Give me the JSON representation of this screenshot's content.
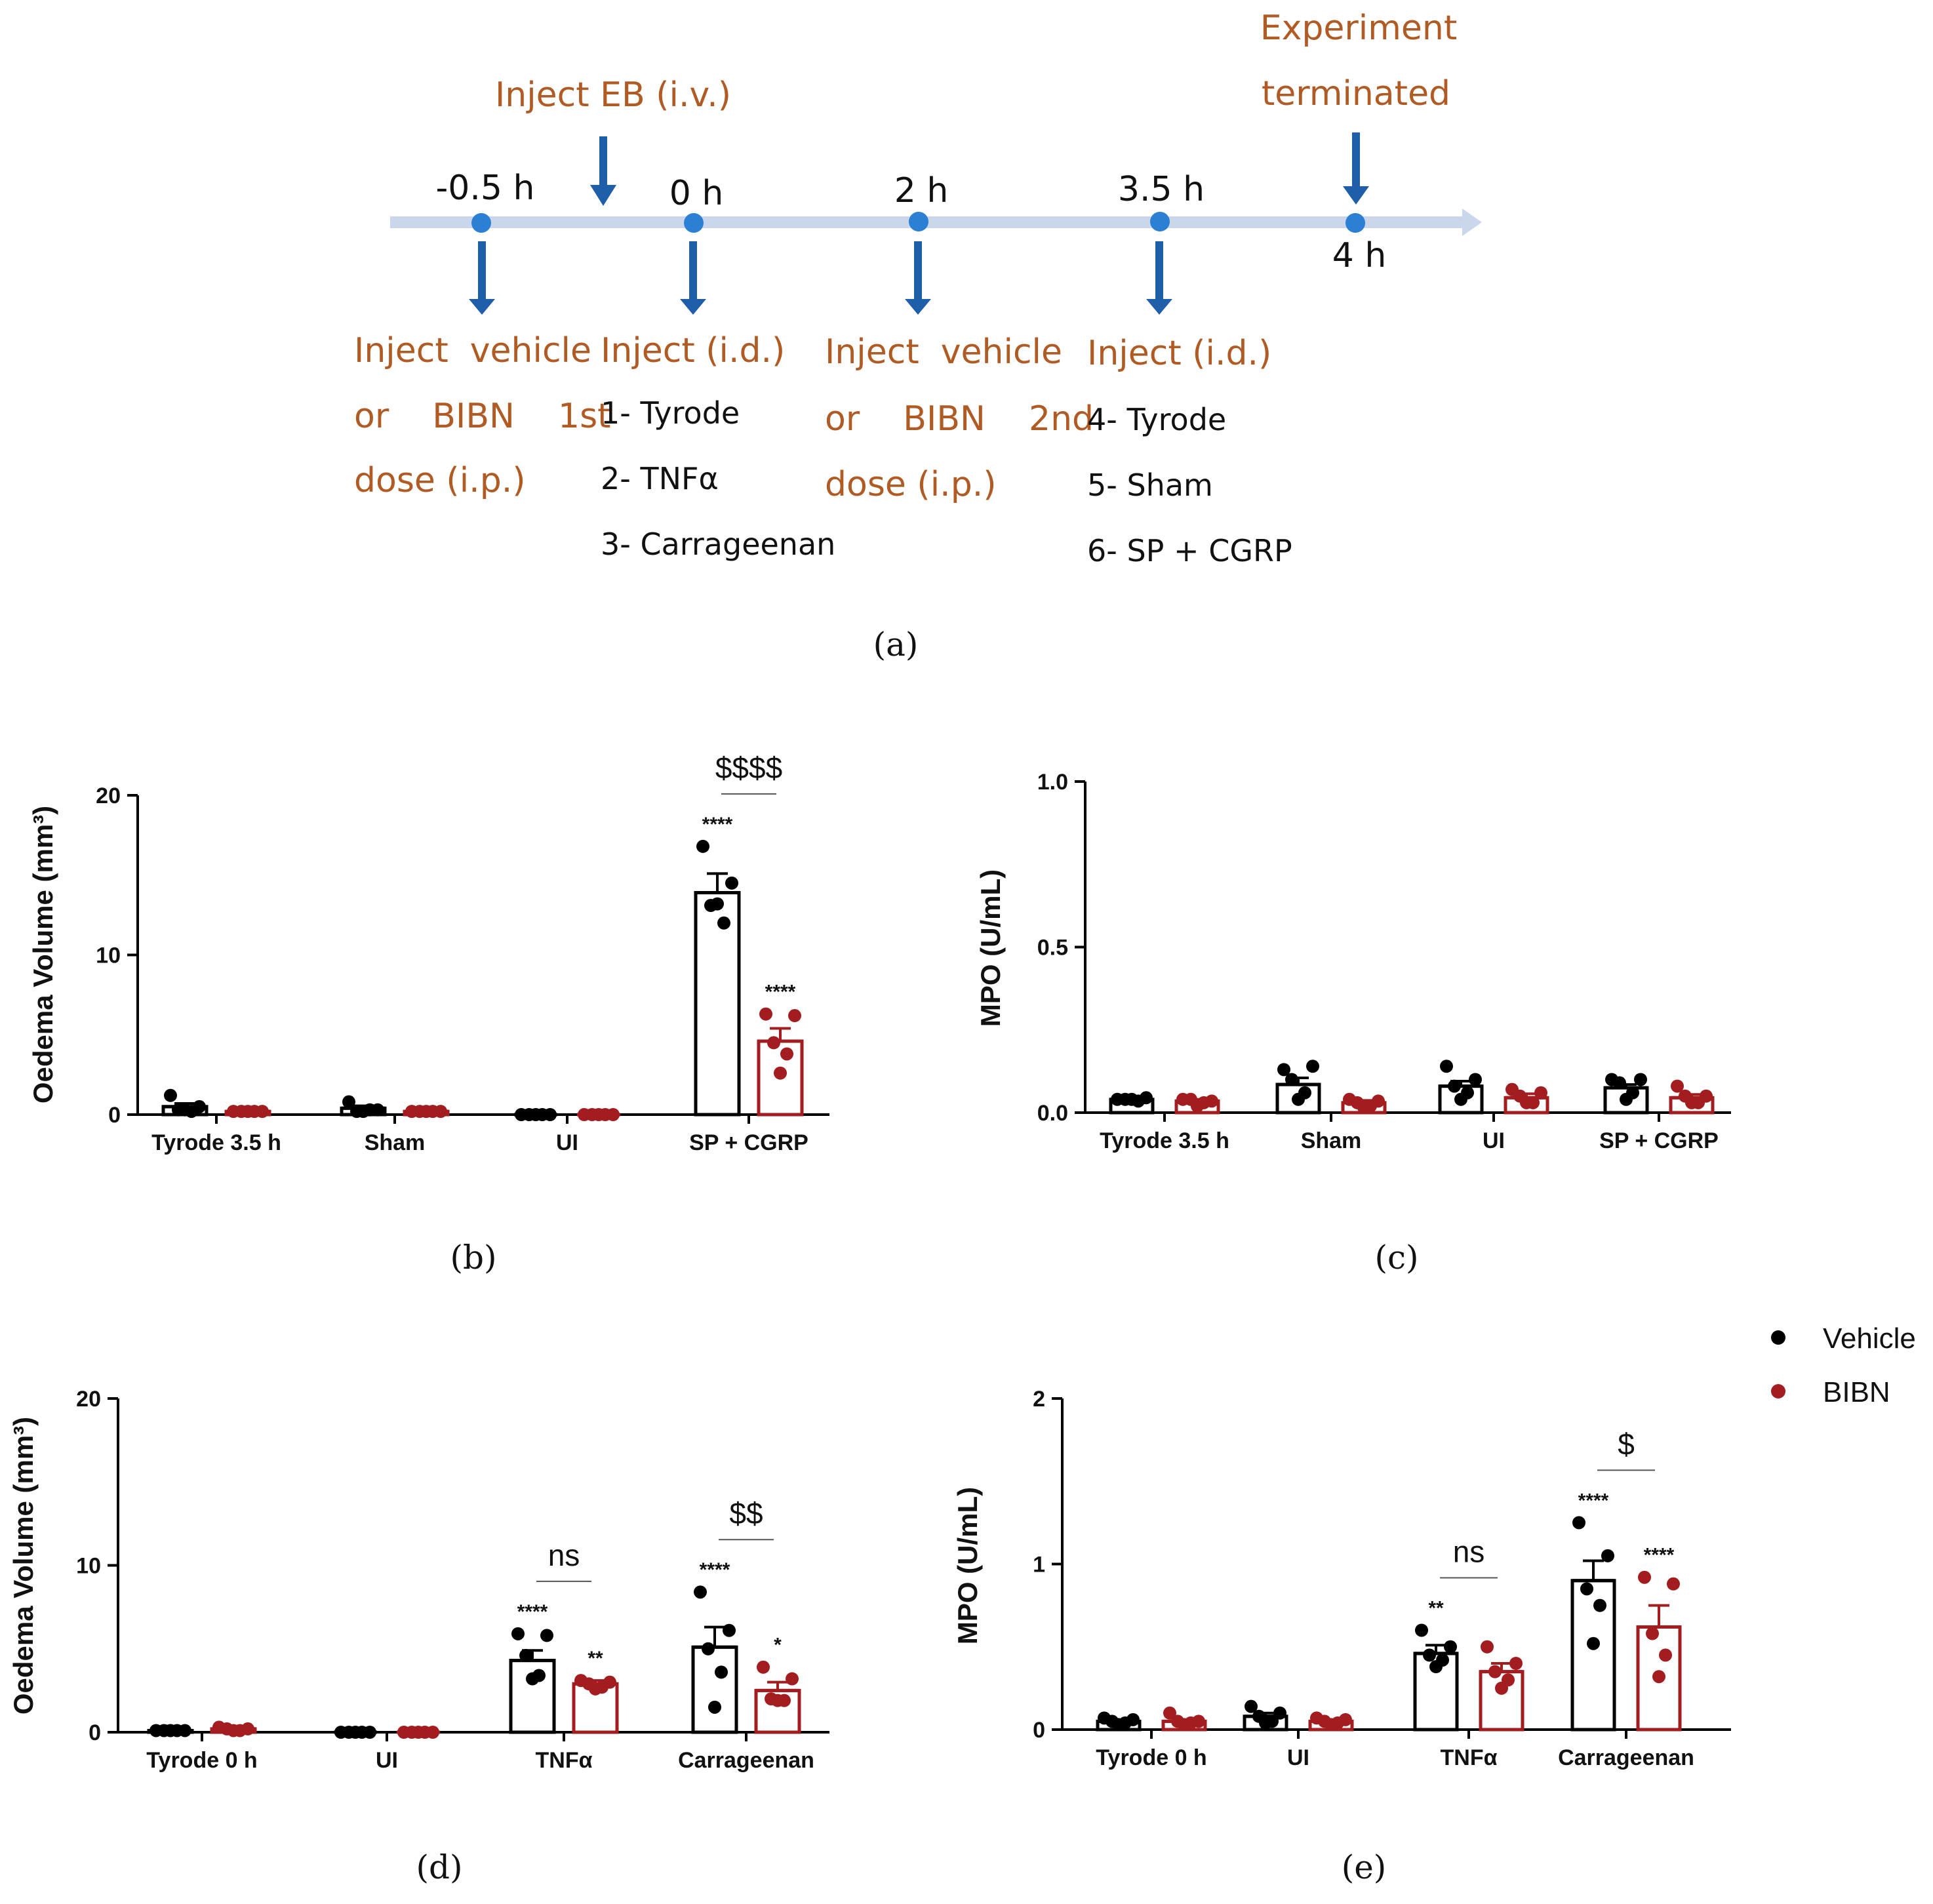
{
  "timeline": {
    "time_points": [
      "-0.5 h",
      "0 h",
      "2 h",
      "3.5 h",
      "4 h"
    ],
    "inject_eb": "Inject EB (i.v.)",
    "experiment_terminated": [
      "Experiment",
      "terminated"
    ],
    "step1": [
      "Inject  vehicle",
      "or    BIBN    1st",
      "dose (i.p.)"
    ],
    "step2_title": "Inject (i.d.)",
    "step2_items": [
      "1- Tyrode",
      "2- TNFα",
      "3- Carrageenan"
    ],
    "step3": [
      "Inject  vehicle",
      "or    BIBN    2nd",
      "dose (i.p.)"
    ],
    "step4_title": "Inject (i.d.)",
    "step4_items": [
      "4- Tyrode",
      "5- Sham",
      "6- SP + CGRP"
    ],
    "panel_label": "(a)"
  },
  "colors": {
    "vehicle": "#000000",
    "bibn": "#a31d20",
    "timeline_arrow": "#1f5ea8",
    "timeline_dot": "#2b7fd4",
    "timeline_bar": "#c9d6ec",
    "orange_text": "#b05a24"
  },
  "legend": [
    {
      "label": "Vehicle",
      "color": "#000000"
    },
    {
      "label": "BIBN",
      "color": "#a31d20"
    }
  ],
  "chart_data": [
    {
      "id": "b",
      "panel_label": "(b)",
      "type": "bar",
      "ylabel": "Oedema Volume (mm³)",
      "ylim": [
        0,
        20
      ],
      "yticks": [
        "0",
        "10",
        "20"
      ],
      "categories": [
        "Tyrode 3.5 h",
        "Sham",
        "UI",
        "SP + CGRP"
      ],
      "series": [
        {
          "name": "Vehicle",
          "values": [
            0.5,
            0.4,
            0.0,
            13.9
          ],
          "sem": [
            0.2,
            0.15,
            0,
            1.2
          ],
          "points": [
            [
              1.2,
              0.5,
              0.3,
              0.2,
              0.3
            ],
            [
              0.8,
              0.3,
              0.2,
              0.3,
              0.2
            ],
            [
              0,
              0,
              0,
              0,
              0
            ],
            [
              16.8,
              14.5,
              13.1,
              12.0,
              13.2
            ]
          ],
          "sig": [
            "",
            "",
            "",
            "****"
          ]
        },
        {
          "name": "BIBN",
          "values": [
            0.2,
            0.2,
            0.0,
            4.6
          ],
          "sem": [
            0.05,
            0.05,
            0,
            0.8
          ],
          "points": [
            [
              0.2,
              0.2,
              0.2,
              0.2,
              0.2
            ],
            [
              0.2,
              0.2,
              0.2,
              0.2,
              0.2
            ],
            [
              0,
              0,
              0,
              0,
              0
            ],
            [
              6.3,
              6.2,
              4.5,
              3.8,
              2.6
            ]
          ],
          "sig": [
            "",
            "",
            "",
            "****"
          ]
        }
      ],
      "comparisons": [
        {
          "category": 3,
          "label": "$$$$"
        }
      ]
    },
    {
      "id": "c",
      "panel_label": "(c)",
      "type": "bar",
      "ylabel": "MPO (U/mL)",
      "ylim": [
        0,
        1.0
      ],
      "yticks": [
        "0.0",
        "0.5",
        "1.0"
      ],
      "categories": [
        "Tyrode 3.5 h",
        "Sham",
        "UI",
        "SP + CGRP"
      ],
      "series": [
        {
          "name": "Vehicle",
          "values": [
            0.04,
            0.085,
            0.08,
            0.075
          ],
          "sem": [
            0.005,
            0.02,
            0.015,
            0.01
          ],
          "points": [
            [
              0.04,
              0.045,
              0.04,
              0.035,
              0.04
            ],
            [
              0.13,
              0.14,
              0.1,
              0.06,
              0.04
            ],
            [
              0.14,
              0.1,
              0.08,
              0.06,
              0.04
            ],
            [
              0.1,
              0.1,
              0.09,
              0.06,
              0.04
            ]
          ],
          "sig": [
            "",
            "",
            "",
            ""
          ]
        },
        {
          "name": "BIBN",
          "values": [
            0.035,
            0.03,
            0.045,
            0.045
          ],
          "sem": [
            0.005,
            0.007,
            0.012,
            0.01
          ],
          "points": [
            [
              0.04,
              0.035,
              0.04,
              0.03,
              0.02
            ],
            [
              0.04,
              0.035,
              0.03,
              0.02,
              0.015
            ],
            [
              0.07,
              0.06,
              0.05,
              0.03,
              0.03
            ],
            [
              0.08,
              0.05,
              0.05,
              0.03,
              0.03
            ]
          ],
          "sig": [
            "",
            "",
            "",
            ""
          ]
        }
      ],
      "comparisons": []
    },
    {
      "id": "d",
      "panel_label": "(d)",
      "type": "bar",
      "ylabel": "Oedema Volume (mm³)",
      "ylim": [
        0,
        20
      ],
      "yticks": [
        "0",
        "10",
        "20"
      ],
      "categories": [
        "Tyrode 0 h",
        "UI",
        "TNFα",
        "Carrageenan"
      ],
      "series": [
        {
          "name": "Vehicle",
          "values": [
            0.1,
            0.0,
            4.3,
            5.1
          ],
          "sem": [
            0.02,
            0,
            0.6,
            1.2
          ],
          "points": [
            [
              0.1,
              0.1,
              0.1,
              0.1,
              0.1
            ],
            [
              0,
              0,
              0,
              0,
              0
            ],
            [
              5.9,
              5.8,
              4.6,
              3.4,
              3.2
            ],
            [
              8.4,
              6.1,
              5.0,
              3.6,
              1.5
            ]
          ],
          "sig": [
            "",
            "",
            "****",
            "****"
          ]
        },
        {
          "name": "BIBN",
          "values": [
            0.2,
            0.0,
            2.9,
            2.5
          ],
          "sem": [
            0.05,
            0,
            0.2,
            0.5
          ],
          "points": [
            [
              0.3,
              0.2,
              0.2,
              0.1,
              0.1
            ],
            [
              0,
              0,
              0,
              0,
              0
            ],
            [
              3.1,
              3.0,
              2.9,
              2.7,
              2.6
            ],
            [
              3.9,
              3.2,
              2.0,
              1.9,
              1.9
            ]
          ],
          "sig": [
            "",
            "",
            "**",
            "*"
          ]
        }
      ],
      "comparisons": [
        {
          "category": 2,
          "label": "ns"
        },
        {
          "category": 3,
          "label": "$$"
        }
      ]
    },
    {
      "id": "e",
      "panel_label": "(e)",
      "type": "bar",
      "ylabel": "MPO (U/mL)",
      "ylim": [
        0,
        2
      ],
      "yticks": [
        "0",
        "1",
        "2"
      ],
      "categories": [
        "Tyrode 0 h",
        "UI",
        "TNFα",
        "Carrageenan"
      ],
      "series": [
        {
          "name": "Vehicle",
          "values": [
            0.05,
            0.08,
            0.46,
            0.9
          ],
          "sem": [
            0.01,
            0.02,
            0.05,
            0.12
          ],
          "points": [
            [
              0.07,
              0.06,
              0.05,
              0.04,
              0.03
            ],
            [
              0.14,
              0.1,
              0.08,
              0.05,
              0.04
            ],
            [
              0.6,
              0.5,
              0.45,
              0.42,
              0.38
            ],
            [
              1.25,
              1.05,
              0.85,
              0.75,
              0.52
            ]
          ],
          "sig": [
            "",
            "",
            "**",
            "****"
          ]
        },
        {
          "name": "BIBN",
          "values": [
            0.05,
            0.05,
            0.35,
            0.62
          ],
          "sem": [
            0.01,
            0.01,
            0.05,
            0.13
          ],
          "points": [
            [
              0.1,
              0.05,
              0.05,
              0.04,
              0.03
            ],
            [
              0.07,
              0.06,
              0.05,
              0.04,
              0.03
            ],
            [
              0.5,
              0.4,
              0.35,
              0.3,
              0.25
            ],
            [
              0.92,
              0.88,
              0.58,
              0.45,
              0.32
            ]
          ],
          "sig": [
            "",
            "",
            "",
            "****"
          ]
        }
      ],
      "comparisons": [
        {
          "category": 2,
          "label": "ns"
        },
        {
          "category": 3,
          "label": "$"
        }
      ]
    }
  ]
}
